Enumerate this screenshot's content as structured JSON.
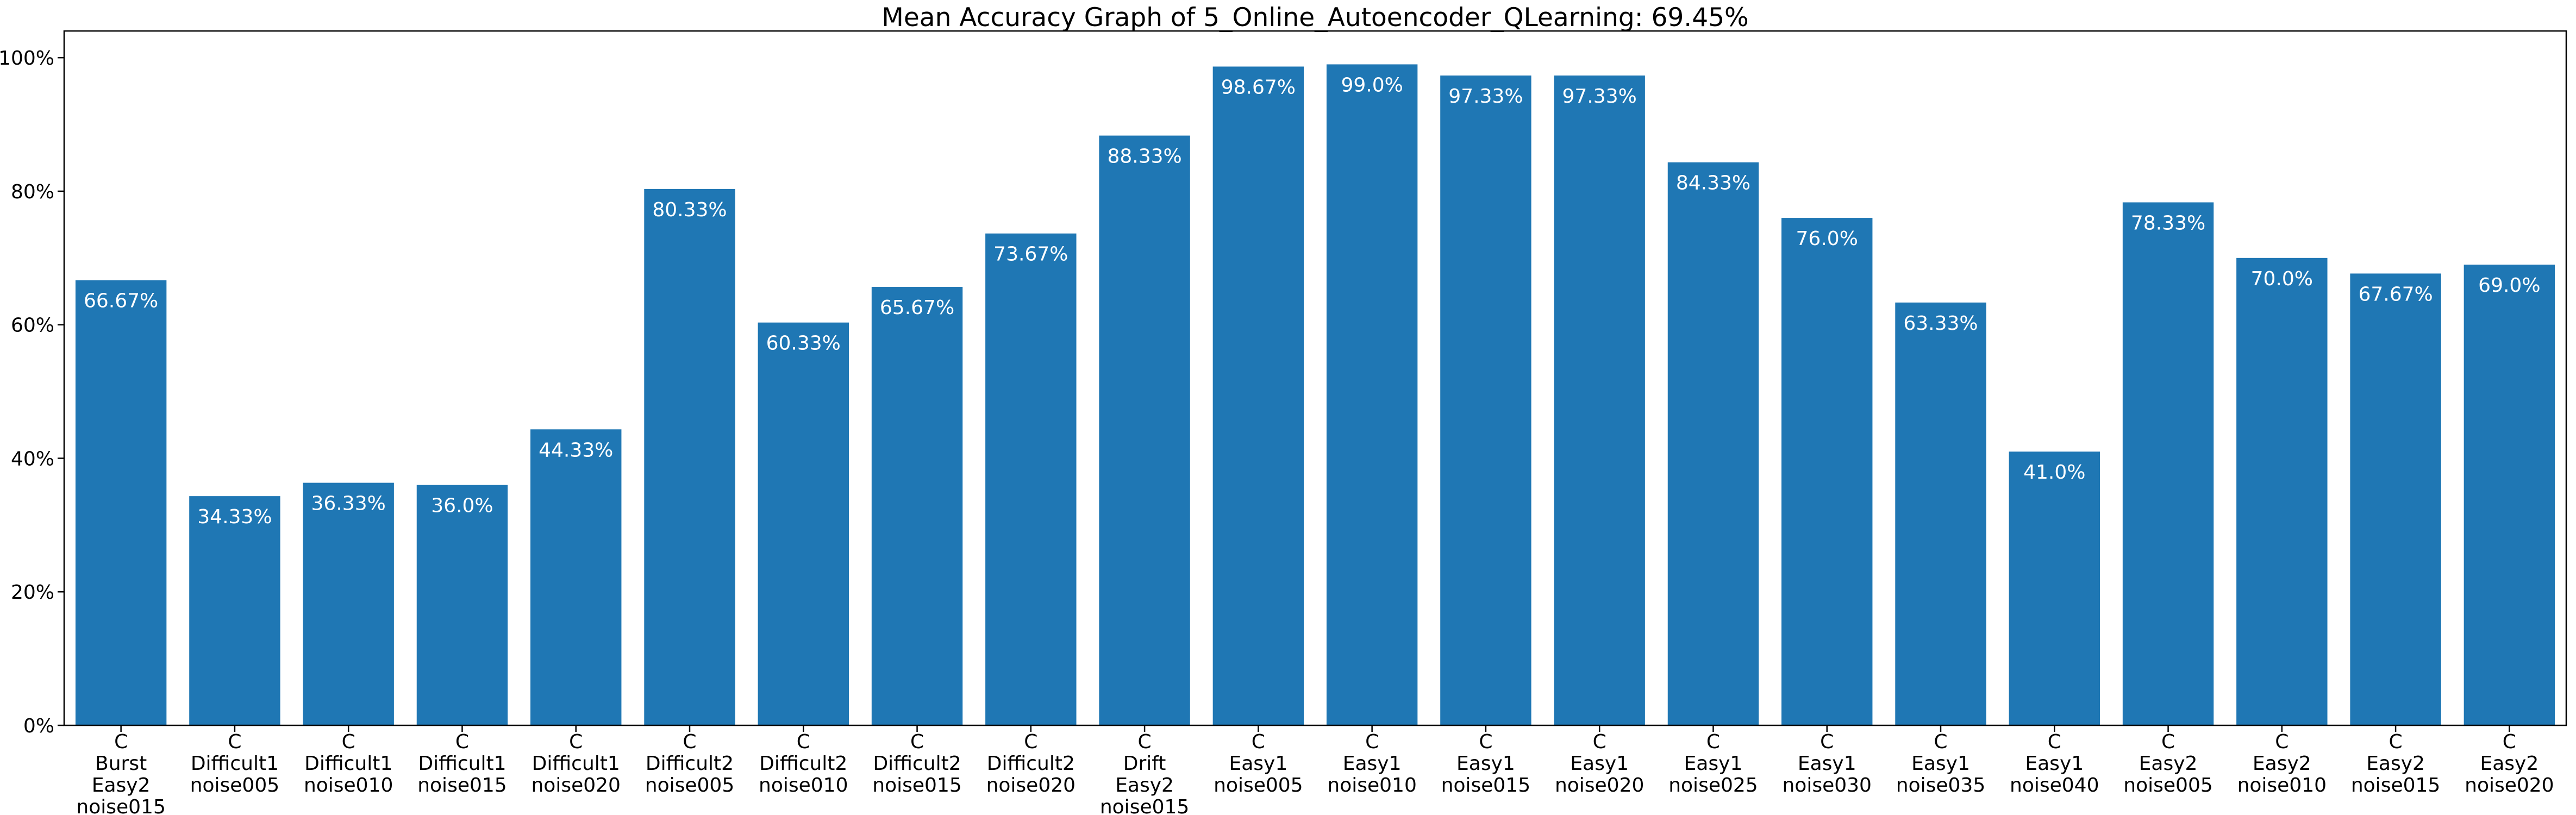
{
  "chart_data": {
    "type": "bar",
    "title": "Mean Accuracy Graph of 5_Online_Autoencoder_QLearning: 69.45%",
    "xlabel": "",
    "ylabel": "",
    "ylim": [
      0,
      104
    ],
    "yticks": [
      0,
      20,
      40,
      60,
      80,
      100
    ],
    "ytick_labels": [
      "0%",
      "20%",
      "40%",
      "60%",
      "80%",
      "100%"
    ],
    "grid": false,
    "bar_color": "#1f77b4",
    "label_color": "#ffffff",
    "categories": [
      [
        "C",
        "Burst",
        "Easy2",
        "noise015"
      ],
      [
        "C",
        "Difficult1",
        "noise005"
      ],
      [
        "C",
        "Difficult1",
        "noise010"
      ],
      [
        "C",
        "Difficult1",
        "noise015"
      ],
      [
        "C",
        "Difficult1",
        "noise020"
      ],
      [
        "C",
        "Difficult2",
        "noise005"
      ],
      [
        "C",
        "Difficult2",
        "noise010"
      ],
      [
        "C",
        "Difficult2",
        "noise015"
      ],
      [
        "C",
        "Difficult2",
        "noise020"
      ],
      [
        "C",
        "Drift",
        "Easy2",
        "noise015"
      ],
      [
        "C",
        "Easy1",
        "noise005"
      ],
      [
        "C",
        "Easy1",
        "noise010"
      ],
      [
        "C",
        "Easy1",
        "noise015"
      ],
      [
        "C",
        "Easy1",
        "noise020"
      ],
      [
        "C",
        "Easy1",
        "noise025"
      ],
      [
        "C",
        "Easy1",
        "noise030"
      ],
      [
        "C",
        "Easy1",
        "noise035"
      ],
      [
        "C",
        "Easy1",
        "noise040"
      ],
      [
        "C",
        "Easy2",
        "noise005"
      ],
      [
        "C",
        "Easy2",
        "noise010"
      ],
      [
        "C",
        "Easy2",
        "noise015"
      ],
      [
        "C",
        "Easy2",
        "noise020"
      ]
    ],
    "values": [
      66.67,
      34.33,
      36.33,
      36.0,
      44.33,
      80.33,
      60.33,
      65.67,
      73.67,
      88.33,
      98.67,
      99.0,
      97.33,
      97.33,
      84.33,
      76.0,
      63.33,
      41.0,
      78.33,
      70.0,
      67.67,
      69.0
    ],
    "data_labels": [
      "66.67%",
      "34.33%",
      "36.33%",
      "36.0%",
      "44.33%",
      "80.33%",
      "60.33%",
      "65.67%",
      "73.67%",
      "88.33%",
      "98.67%",
      "99.0%",
      "97.33%",
      "97.33%",
      "84.33%",
      "76.0%",
      "63.33%",
      "41.0%",
      "78.33%",
      "70.0%",
      "67.67%",
      "69.0%"
    ]
  }
}
